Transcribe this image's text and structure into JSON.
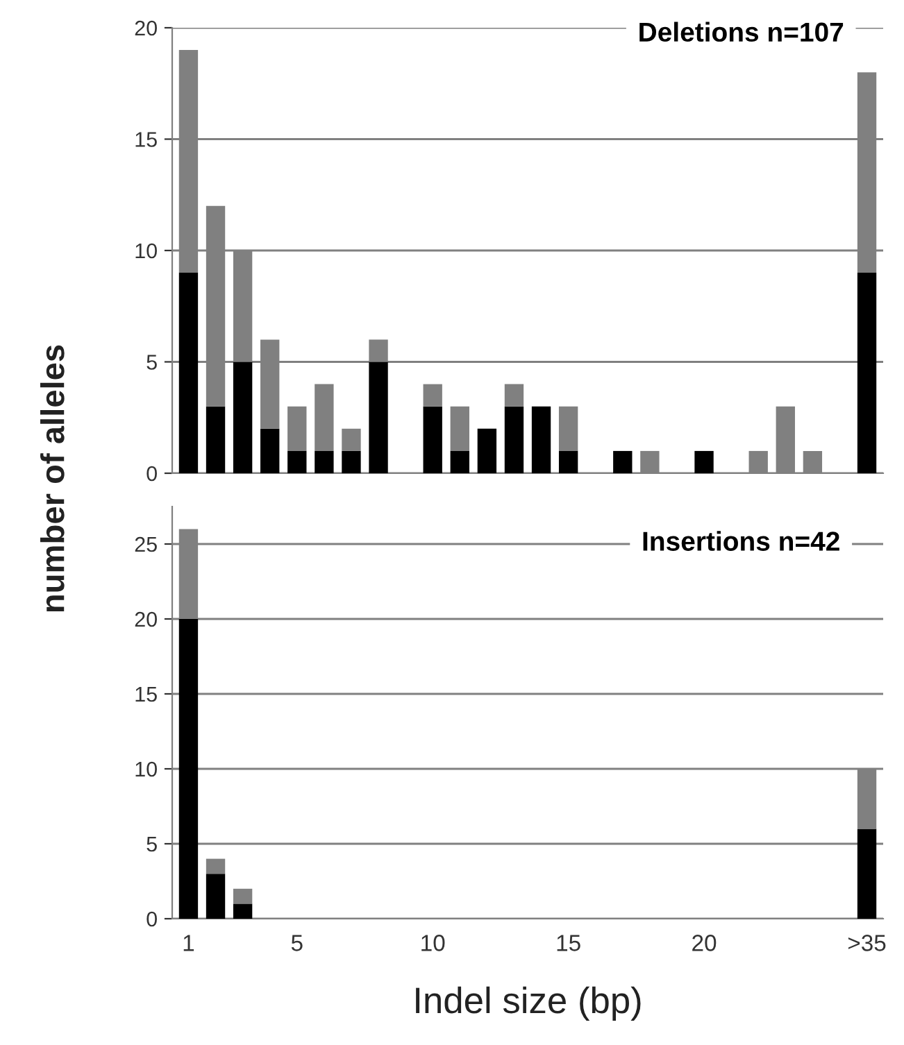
{
  "chart_data": [
    {
      "type": "bar",
      "title": "Deletions n=107",
      "ylabel": "number of alleles",
      "stacked": true,
      "grid": "y",
      "tick_labels": "y",
      "categories": [
        null,
        null,
        null,
        null,
        null,
        null,
        null,
        null,
        null,
        null,
        null,
        null,
        null,
        null,
        null,
        null,
        null,
        null,
        null,
        null,
        null,
        null,
        null,
        null,
        null,
        null
      ],
      "series": [
        {
          "color": "#000000",
          "values": [
            9,
            3,
            5,
            2,
            1,
            1,
            1,
            5,
            0,
            3,
            1,
            2,
            3,
            3,
            1,
            0,
            1,
            0,
            0,
            1,
            0,
            0,
            0,
            0,
            0,
            9
          ]
        },
        {
          "color": "#808080",
          "values": [
            10,
            9,
            5,
            4,
            2,
            3,
            1,
            1,
            0,
            1,
            2,
            0,
            1,
            0,
            2,
            0,
            0,
            1,
            0,
            0,
            0,
            1,
            3,
            1,
            0,
            9
          ]
        }
      ],
      "ylim": [
        0,
        20
      ],
      "yticks": [
        0,
        5,
        10,
        15,
        20
      ]
    },
    {
      "type": "bar",
      "title": "Insertions n=42",
      "xlabel": "Indel size (bp)",
      "stacked": true,
      "grid": "y",
      "categories": [
        "1",
        null,
        null,
        null,
        "5",
        null,
        null,
        null,
        null,
        "10",
        null,
        null,
        null,
        null,
        "15",
        null,
        null,
        null,
        null,
        "20",
        null,
        null,
        null,
        null,
        null,
        ">35"
      ],
      "series": [
        {
          "color": "#000000",
          "values": [
            20,
            3,
            1,
            0,
            0,
            0,
            0,
            0,
            0,
            0,
            0,
            0,
            0,
            0,
            0,
            0,
            0,
            0,
            0,
            0,
            0,
            0,
            0,
            0,
            0,
            6
          ]
        },
        {
          "color": "#808080",
          "values": [
            6,
            1,
            1,
            0,
            0,
            0,
            0,
            0,
            0,
            0,
            0,
            0,
            0,
            0,
            0,
            0,
            0,
            0,
            0,
            0,
            0,
            0,
            0,
            0,
            0,
            4
          ]
        }
      ],
      "ylim": [
        0,
        27.5
      ],
      "yticks": [
        0,
        5,
        10,
        15,
        20,
        25
      ]
    }
  ]
}
